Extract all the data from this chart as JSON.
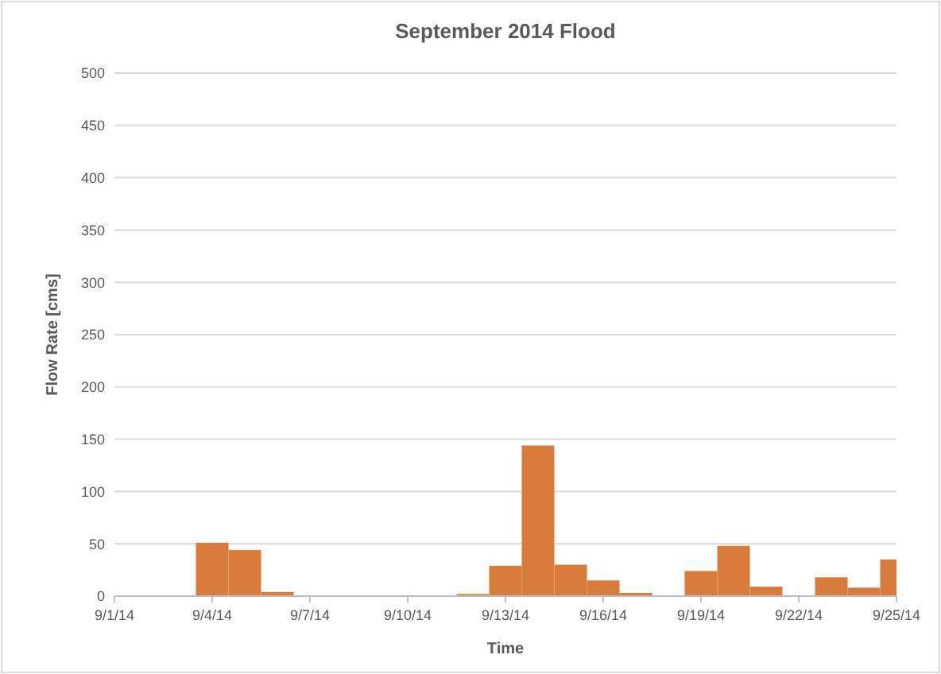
{
  "chart_data": {
    "type": "bar",
    "title": "September 2014 Flood",
    "xlabel": "Time",
    "ylabel": "Flow Rate [cms]",
    "categories": [
      "9/1/14",
      null,
      null,
      "9/4/14",
      null,
      null,
      "9/7/14",
      null,
      null,
      "9/10/14",
      null,
      null,
      "9/13/14",
      null,
      null,
      "9/16/14",
      null,
      null,
      "9/19/14",
      null,
      null,
      "9/22/14",
      null,
      null,
      "9/25/14"
    ],
    "values": [
      0,
      0,
      0,
      51,
      44,
      4,
      0,
      0,
      0,
      0,
      0,
      2,
      29,
      144,
      30,
      15,
      3,
      0,
      24,
      48,
      9,
      0,
      18,
      8,
      35
    ],
    "color": "#d97b3a",
    "ylim": [
      0,
      500
    ],
    "yticks": [
      0,
      50,
      100,
      150,
      200,
      250,
      300,
      350,
      400,
      450,
      500
    ],
    "grid": "y"
  }
}
